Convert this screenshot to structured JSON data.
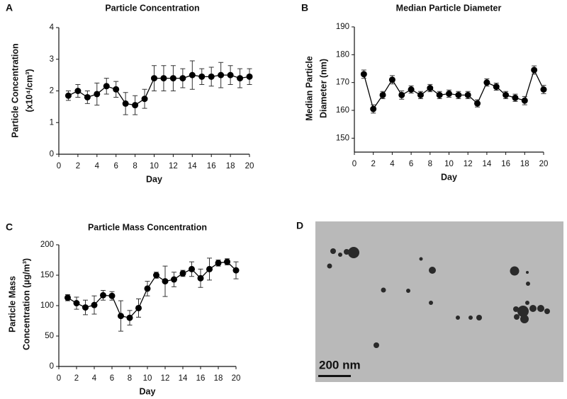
{
  "chart_data": [
    {
      "type": "line",
      "panel": "A",
      "title": "Particle Concentration",
      "xlabel": "Day",
      "ylabel": [
        "Particle Concentration",
        "(x10⁴/cm³)"
      ],
      "x": [
        1,
        2,
        3,
        4,
        5,
        6,
        7,
        8,
        9,
        10,
        11,
        12,
        13,
        14,
        15,
        16,
        17,
        18,
        19,
        20
      ],
      "values": [
        1.85,
        2.0,
        1.8,
        1.9,
        2.15,
        2.05,
        1.6,
        1.55,
        1.75,
        2.4,
        2.4,
        2.4,
        2.4,
        2.5,
        2.45,
        2.45,
        2.5,
        2.5,
        2.4,
        2.45
      ],
      "errors": [
        0.15,
        0.2,
        0.2,
        0.35,
        0.25,
        0.25,
        0.35,
        0.3,
        0.3,
        0.4,
        0.4,
        0.4,
        0.3,
        0.45,
        0.25,
        0.3,
        0.4,
        0.3,
        0.3,
        0.25
      ],
      "color": "#000000",
      "xlim": [
        0,
        20
      ],
      "xticks": [
        0,
        2,
        4,
        6,
        8,
        10,
        12,
        14,
        16,
        18,
        20
      ],
      "ylim": [
        0,
        4
      ],
      "yticks": [
        0,
        1,
        2,
        3,
        4
      ],
      "grid": false
    },
    {
      "type": "line",
      "panel": "B",
      "title": "Median Particle Diameter",
      "xlabel": "Day",
      "ylabel": [
        "Median Particle",
        "Diameter (nm)"
      ],
      "x": [
        1,
        2,
        3,
        4,
        5,
        6,
        7,
        8,
        9,
        10,
        11,
        12,
        13,
        14,
        15,
        16,
        17,
        18,
        19,
        20
      ],
      "values": [
        173,
        160.5,
        165.5,
        171,
        165.5,
        167.5,
        165.5,
        168,
        165.5,
        166,
        165.5,
        165.5,
        162.5,
        170,
        168.5,
        165.5,
        164.5,
        163.5,
        174.5,
        167.5
      ],
      "errors": [
        1.5,
        1.5,
        1.3,
        1.5,
        1.5,
        1.3,
        1.3,
        1.3,
        1.3,
        1.3,
        1.3,
        1.3,
        1.3,
        1.3,
        1.3,
        1.3,
        1.3,
        1.5,
        1.5,
        1.5
      ],
      "color": "#000000",
      "xlim": [
        0,
        20
      ],
      "xticks": [
        0,
        2,
        4,
        6,
        8,
        10,
        12,
        14,
        16,
        18,
        20
      ],
      "ylim": [
        145,
        190
      ],
      "yticks": [
        150,
        160,
        170,
        180,
        190
      ],
      "grid": false
    },
    {
      "type": "line",
      "panel": "C",
      "title": "Particle Mass Concentration",
      "xlabel": "Day",
      "ylabel": [
        "Particle Mass",
        "Concentration (µg/m³)"
      ],
      "x": [
        1,
        2,
        3,
        4,
        5,
        6,
        7,
        8,
        9,
        10,
        11,
        12,
        13,
        14,
        15,
        16,
        17,
        18,
        19,
        20
      ],
      "values": [
        113,
        104,
        97,
        101,
        117,
        116,
        83,
        80,
        96,
        128,
        150,
        140,
        143,
        153,
        160,
        145,
        160,
        170,
        172,
        158
      ],
      "errors": [
        5,
        10,
        12,
        15,
        8,
        7,
        25,
        12,
        15,
        12,
        5,
        25,
        12,
        5,
        12,
        15,
        18,
        5,
        5,
        14
      ],
      "color": "#000000",
      "xlim": [
        0,
        20
      ],
      "xticks": [
        0,
        2,
        4,
        6,
        8,
        10,
        12,
        14,
        16,
        18,
        20
      ],
      "ylim": [
        0,
        200
      ],
      "yticks": [
        0,
        50,
        100,
        150,
        200
      ],
      "grid": false
    }
  ],
  "image_panel": {
    "label": "D",
    "scale_bar": "200 nm"
  }
}
